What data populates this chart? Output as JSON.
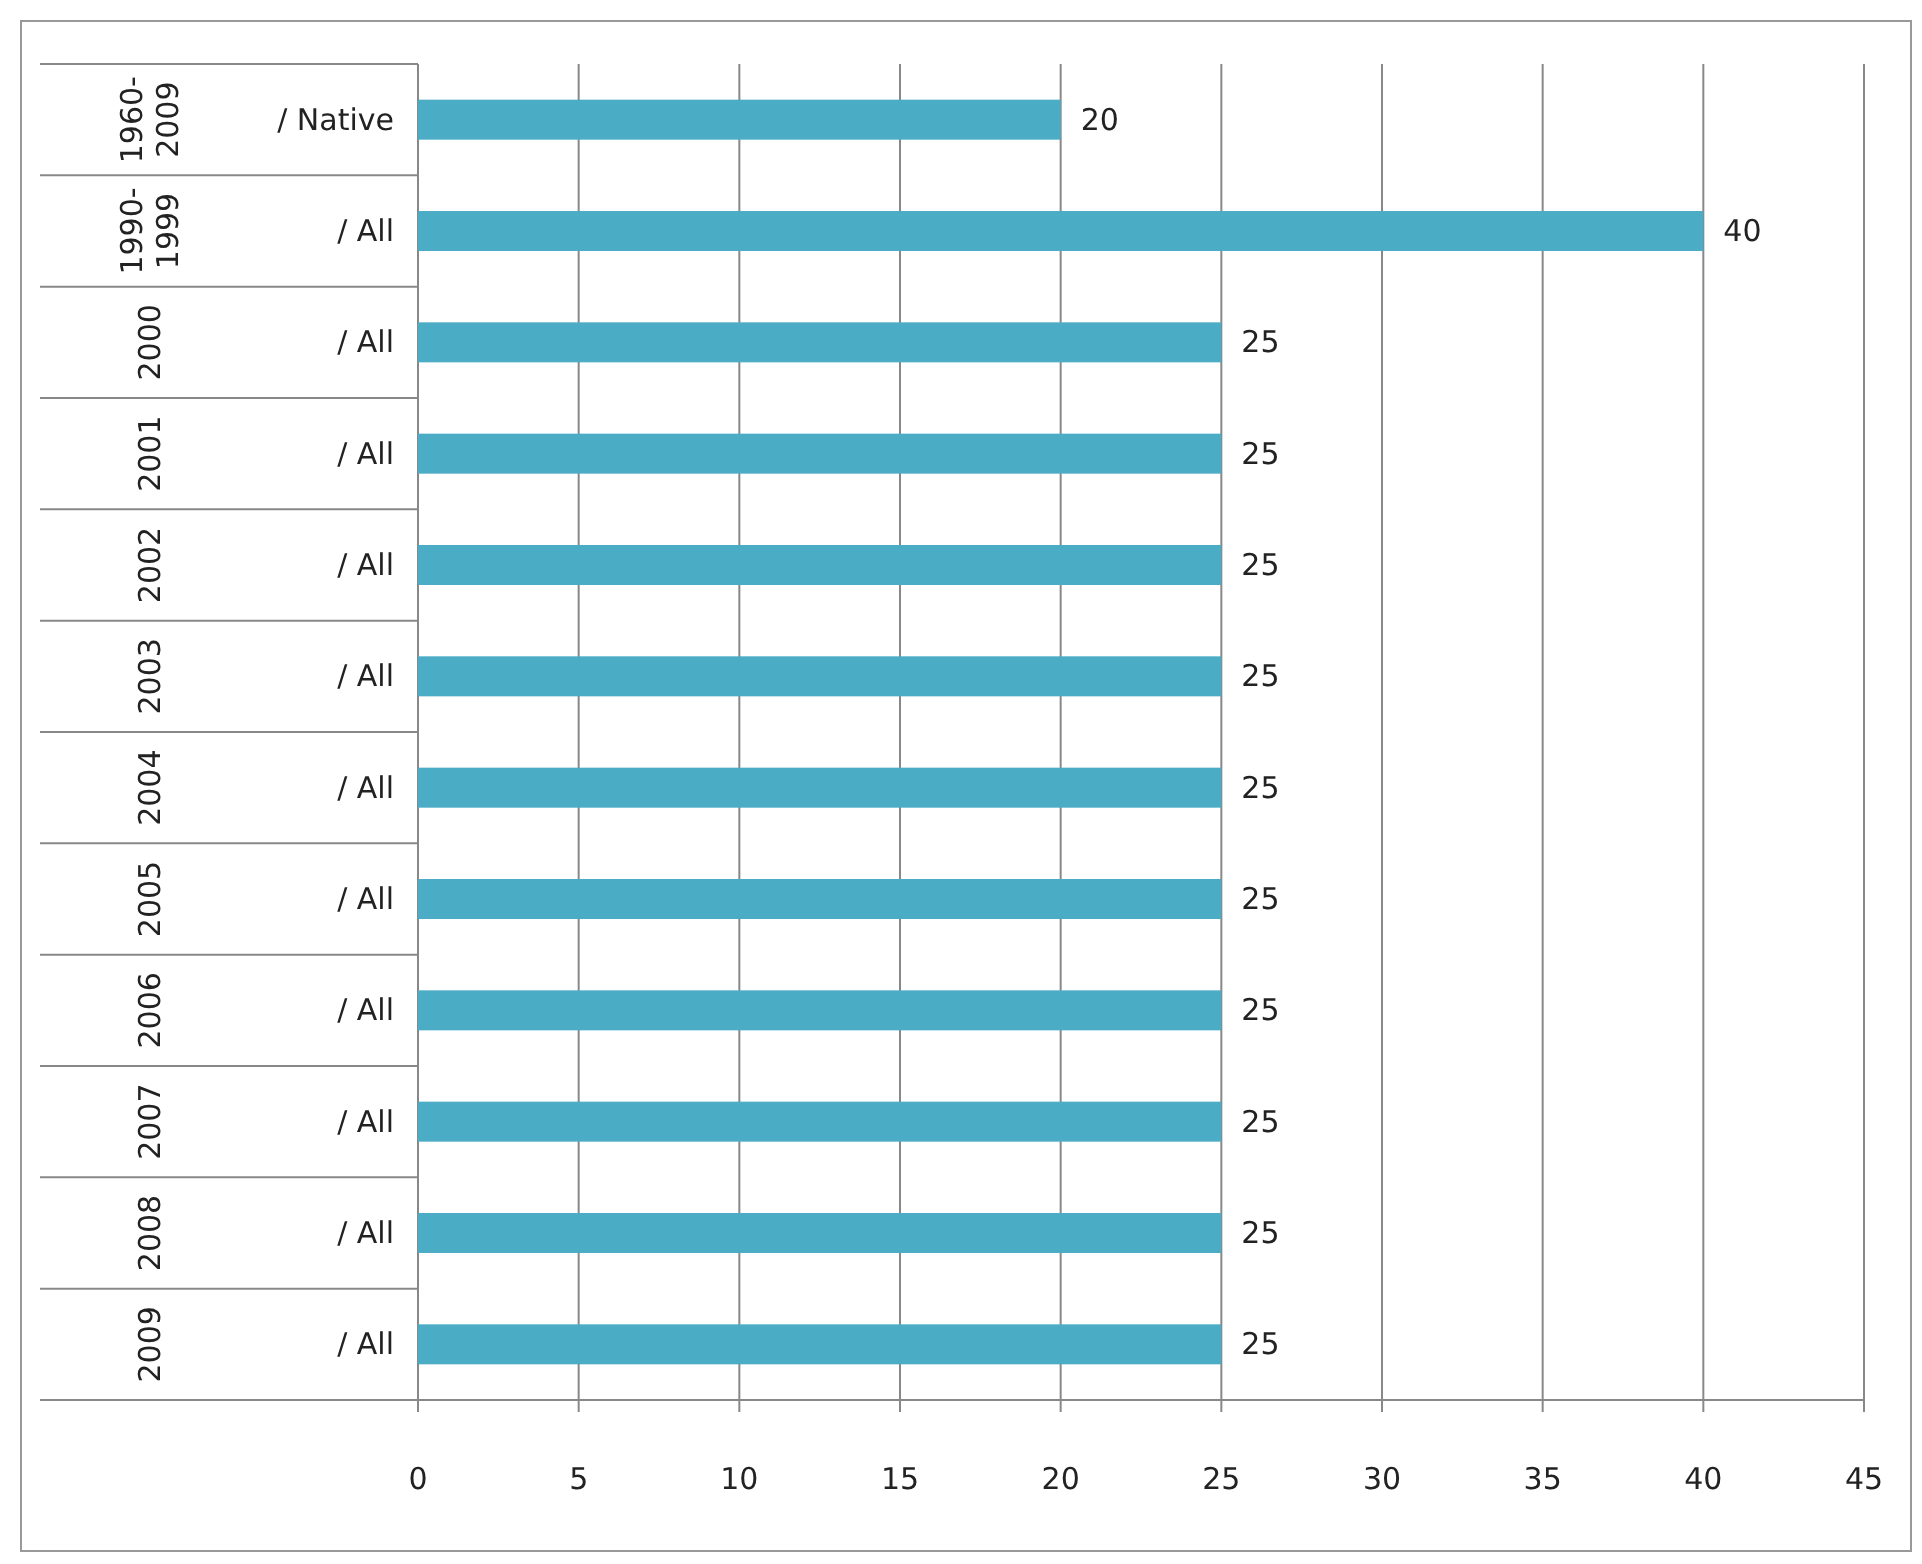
{
  "chart_data": {
    "type": "bar",
    "orientation": "horizontal",
    "categories": [
      "/ Native",
      "/ All",
      "/ All",
      "/ All",
      "/ All",
      "/ All",
      "/ All",
      "/ All",
      "/ All",
      "/ All",
      "/ All",
      "/ All"
    ],
    "values": [
      20,
      40,
      25,
      25,
      25,
      25,
      25,
      25,
      25,
      25,
      25,
      25
    ],
    "color": "#4bacc6",
    "annotations": [
      "1960-2009",
      "1990-1999",
      "2000",
      "2001",
      "2002",
      "2003",
      "2004",
      "2005",
      "2006",
      "2007",
      "2008",
      "2009"
    ],
    "xlim": [
      0,
      45
    ],
    "xticks": [
      0,
      5,
      10,
      15,
      20,
      25,
      30,
      35,
      40,
      45
    ],
    "grid": "x",
    "data_labels": true
  }
}
